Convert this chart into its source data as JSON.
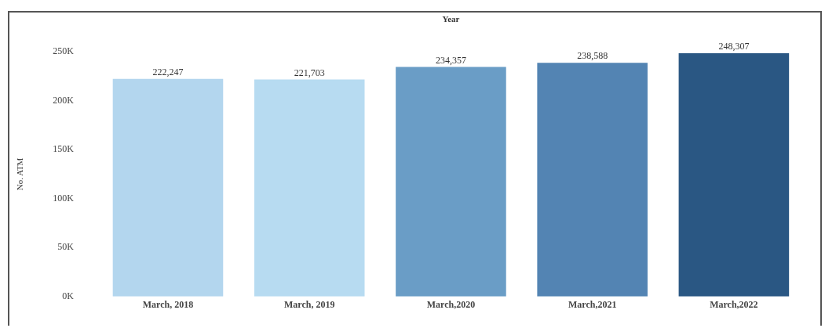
{
  "chart_data": {
    "type": "bar",
    "xlabel": "Year",
    "ylabel": "No. ATM",
    "categories": [
      "March, 2018",
      "March, 2019",
      "March,2020",
      "March,2021",
      "March,2022"
    ],
    "values": [
      222247,
      221703,
      234357,
      238588,
      248307
    ],
    "colors": [
      "#b3d6ee",
      "#b7dbf1",
      "#6a9dc6",
      "#5384b3",
      "#2a5783"
    ],
    "ylim": [
      0,
      250000
    ],
    "value_labels": [
      "222,247",
      "221,703",
      "234,357",
      "238,588",
      "248,307"
    ],
    "yticks": [
      {
        "value": 0,
        "label": "0K"
      },
      {
        "value": 50000,
        "label": "50K"
      },
      {
        "value": 100000,
        "label": "100K"
      },
      {
        "value": 150000,
        "label": "150K"
      },
      {
        "value": 200000,
        "label": "200K"
      },
      {
        "value": 250000,
        "label": "250K"
      }
    ],
    "grid": false,
    "legend": false
  }
}
